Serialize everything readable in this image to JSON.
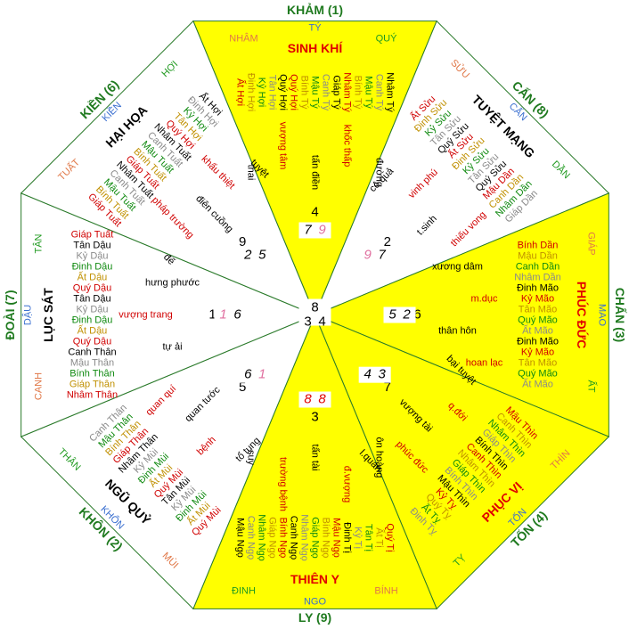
{
  "center": [
    "8",
    "3",
    "4"
  ],
  "mountain_colors": [
    "#e07848",
    "#3a6fd0",
    "#209a20"
  ],
  "list_colors": [
    "#d00000",
    "#c09000",
    "#108a10",
    "#8a8a8a",
    "#000000"
  ],
  "sectors": [
    {
      "name": "KHẢM (1)",
      "fill": "#ffff00",
      "star": "SINH KHÍ",
      "star_color": "#e00000",
      "mountains": [
        "NHÂM",
        "TÝ",
        "QUÝ"
      ],
      "list": [
        "Ất Hợi",
        "Đinh Hợi",
        "Kỷ Hợi",
        "Tân Hợi",
        "Quý Hợi",
        "Quý Hợi",
        "Bính Tý",
        "Mậu Tý",
        "Canh Tý",
        "Giáp Tý",
        "Nhâm Tý",
        "Bính Tý",
        "Mậu Tý",
        "Canh Tý",
        "Nhâm Tý"
      ],
      "words": [
        "thai",
        "vượng tâm",
        "tấn điền",
        "khốc thấp",
        "đường"
      ],
      "numbers": [
        "4",
        "7",
        "9"
      ],
      "number_colors": [
        "#000",
        "#000",
        "#e070a0"
      ]
    },
    {
      "name": "CẤN (8)",
      "fill": "#ffffff",
      "star": "TUYỆT MẠNG",
      "star_color": "#000000",
      "mountains": [
        "SỬU",
        "CẤN",
        "DẦN"
      ],
      "list": [
        "Ất Sửu",
        "Đinh Sửu",
        "Kỷ Sửu",
        "Tân Sửu",
        "Quý Sửu",
        "Ất Sửu",
        "Đinh Sửu",
        "Kỷ Sửu",
        "Tân Sửu",
        "Quý Sửu",
        "Mậu Dần",
        "Canh Dần",
        "Nhâm Dần",
        "Giáp Dần"
      ],
      "words": [
        "cô quả",
        "vinh phú",
        "t.sinh",
        "thiếu vong"
      ],
      "numbers": [
        "2",
        "9",
        "7"
      ],
      "number_colors": [
        "#000",
        "#e070a0",
        "#000"
      ]
    },
    {
      "name": "CHẤN (3)",
      "fill": "#ffff00",
      "star": "PHÚC ĐỨC",
      "star_color": "#e00000",
      "mountains": [
        "GIÁP",
        "MAO",
        "ẤT"
      ],
      "list": [
        "Bính Dần",
        "Mậu Dần",
        "Canh Dần",
        "Nhâm Dần",
        "Đinh Mão",
        "Kỷ Mão",
        "Tân Mão",
        "Quý Mão",
        "Ất Mão",
        "Đinh Mão",
        "Kỷ Mão",
        "Tân Mão",
        "Quý Mão",
        "Ất Mão"
      ],
      "words": [
        "xương dâm",
        "m.dục",
        "thân hôn",
        "hoan lạc"
      ],
      "numbers": [
        "6",
        "5",
        "2"
      ],
      "number_colors": [
        "#000",
        "#000",
        "#000"
      ]
    },
    {
      "name": "TỐN (4)",
      "fill": "#ffff00",
      "star": "PHỤC VỊ",
      "star_color": "#e00000",
      "mountains": [
        "THÌN",
        "TỐN",
        "TỴ"
      ],
      "list": [
        "Mậu Thìn",
        "Canh Thìn",
        "Nhâm Thìn",
        "Giáp Thìn",
        "Bính Thìn",
        "Canh Thìn",
        "Nhâm Thìn",
        "Giáp Thìn",
        "Bính Thìn",
        "Mậu Thìn",
        "Kỷ Tỵ",
        "Quý Tỵ",
        "Ất Tỵ",
        "Đinh Tỵ"
      ],
      "words": [
        "bại tuyệt",
        "q.đới",
        "vượng tài",
        "phúc đức",
        "l.quan"
      ],
      "numbers": [
        "7",
        "4",
        "3"
      ],
      "number_colors": [
        "#000",
        "#000",
        "#000"
      ]
    },
    {
      "name": "LY (9)",
      "fill": "#ffff00",
      "star": "THIÊN Y",
      "star_color": "#e00000",
      "mountains": [
        "BÍNH",
        "NGO",
        "ĐINH"
      ],
      "list": [
        "Quý Tị",
        "Ất Tị",
        "Tân Tị",
        "Kỷ Tị",
        "Đinh Tị",
        "Mậu Ngọ",
        "Bính Ngọ",
        "Giáp Ngọ",
        "Nhâm Ngọ",
        "Canh Ngọ",
        "Bính Ngọ",
        "Giáp Ngọ",
        "Nhâm Ngọ",
        "Canh Ngọ",
        "Mậu Ngọ"
      ],
      "words": [
        "ôn hoàng",
        "đ.vượng",
        "tấn tài",
        "trường bệnh",
        "suy"
      ],
      "numbers": [
        "3",
        "8",
        "8"
      ],
      "number_colors": [
        "#000",
        "#e00000",
        "#e00000"
      ]
    },
    {
      "name": "KHÔN (2)",
      "fill": "#ffffff",
      "star": "NGŨ QUỶ",
      "star_color": "#000000",
      "mountains": [
        "MÙI",
        "KHÔN",
        "THÂN"
      ],
      "list": [
        "Quý Mùi",
        "Ất Mùi",
        "Đinh Mùi",
        "Kỷ Mùi",
        "Tân Mùi",
        "Quý Mùi",
        "Ất Mùi",
        "Đinh Mùi",
        "Kỷ Mùi",
        "Nhâm Thân",
        "Giáp Thân",
        "Bính Thân",
        "Mậu Thân",
        "Canh Thân"
      ],
      "words": [
        "tổ tụng",
        "bệnh",
        "quan tước",
        "quan quí"
      ],
      "numbers": [
        "5",
        "6",
        "1"
      ],
      "number_colors": [
        "#000",
        "#000",
        "#e070a0"
      ]
    },
    {
      "name": "ĐOÀI (7)",
      "fill": "#ffffff",
      "star": "LỤC SÁT",
      "star_color": "#000000",
      "mountains": [
        "CANH",
        "DẬU",
        "TÂN"
      ],
      "list": [
        "Nhâm Thân",
        "Giáp Thân",
        "Bính Thân",
        "Mậu Thân",
        "Canh Thân",
        "Quý Dậu",
        "Ất Dậu",
        "Đinh Dậu",
        "Kỷ Dậu",
        "Tân Dậu",
        "Quý Dậu",
        "Ất Dậu",
        "Đinh Dậu",
        "Kỷ Dậu",
        "Tân Dậu",
        "Giáp Tuất"
      ],
      "words": [
        "tự ải",
        "vượng trang",
        "hưng phước"
      ],
      "numbers": [
        "1",
        "1",
        "6"
      ],
      "number_colors": [
        "#000",
        "#e070a0",
        "#000"
      ]
    },
    {
      "name": "KIỀN (6)",
      "fill": "#ffffff",
      "star": "HẠI HỌA",
      "star_color": "#000000",
      "mountains": [
        "TUẤT",
        "KIỀN",
        "HỢI"
      ],
      "list": [
        "Giáp Tuất",
        "Bính Tuất",
        "Mậu Tuất",
        "Canh Tuất",
        "Nhâm Tuất",
        "Giáp Tuất",
        "Bính Tuất",
        "Mậu Tuất",
        "Canh Tuất",
        "Nhâm Tuất",
        "Quý Hợi",
        "Tân Hợi",
        "Kỷ Hợi",
        "Đinh Hợi",
        "Ất Hợi"
      ],
      "words": [
        "đế",
        "pháp trường",
        "điên cuồng",
        "khẩu thiệt",
        "tuyệt"
      ],
      "numbers": [
        "9",
        "2",
        "5"
      ],
      "number_colors": [
        "#000",
        "#000",
        "#000"
      ]
    }
  ]
}
